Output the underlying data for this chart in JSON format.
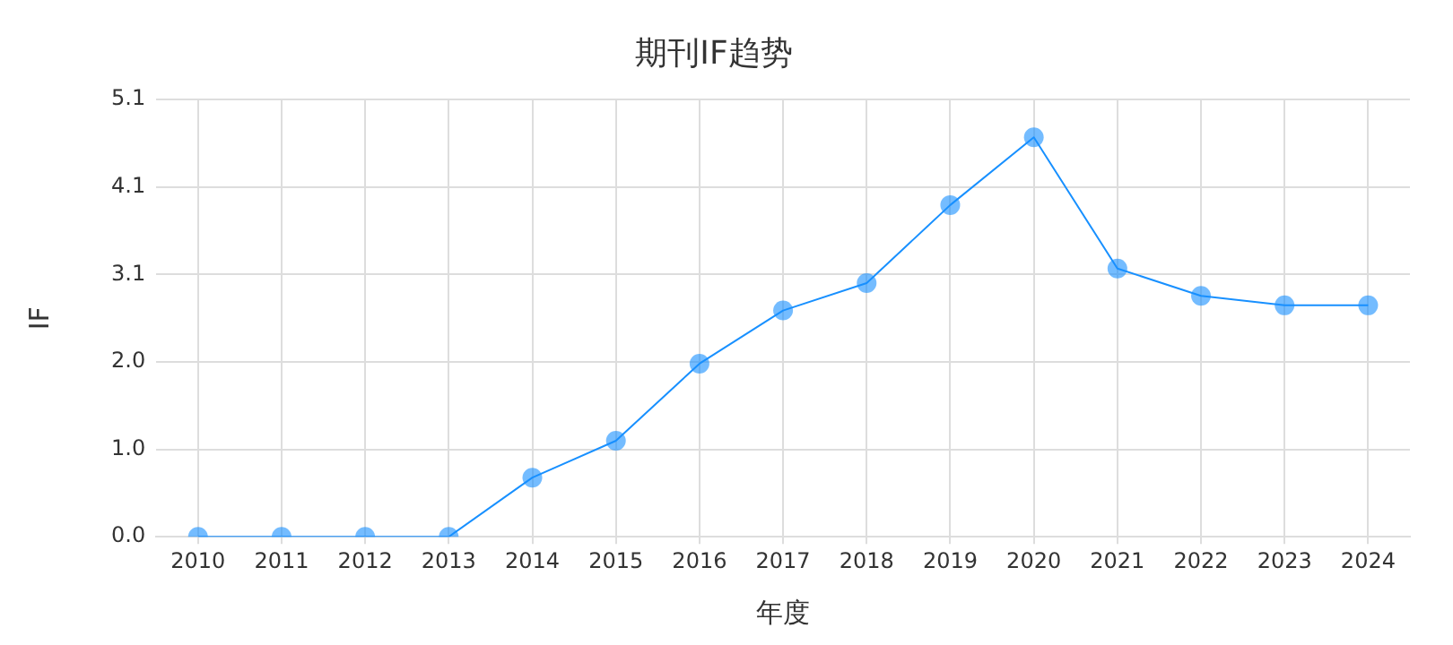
{
  "chart_data": {
    "type": "line",
    "title": "期刊IF趋势",
    "xlabel": "年度",
    "ylabel": "IF",
    "categories": [
      "2010",
      "2011",
      "2012",
      "2013",
      "2014",
      "2015",
      "2016",
      "2017",
      "2018",
      "2019",
      "2020",
      "2021",
      "2022",
      "2023",
      "2024"
    ],
    "series": [
      {
        "color": "#1890ff",
        "values": [
          0,
          0,
          0,
          0,
          0.69,
          1.12,
          2.02,
          2.64,
          2.96,
          3.87,
          4.66,
          3.13,
          2.81,
          2.7,
          2.7
        ]
      }
    ],
    "ylim": [
      0,
      5.1
    ],
    "yticks": [
      {
        "value": 0,
        "label": "0.0"
      },
      {
        "value": 1.02,
        "label": "1.0"
      },
      {
        "value": 2.04,
        "label": "2.0"
      },
      {
        "value": 3.06,
        "label": "3.1"
      },
      {
        "value": 4.08,
        "label": "4.1"
      },
      {
        "value": 5.1,
        "label": "5.1"
      }
    ],
    "grid": true,
    "marker": "circle",
    "line_style": "solid",
    "legend": false
  }
}
